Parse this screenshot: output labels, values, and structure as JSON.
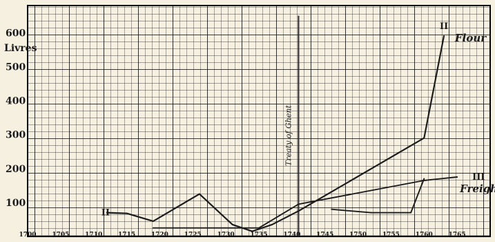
{
  "chart_data": {
    "type": "line",
    "y_unit_label": "Livres",
    "x_ticks": [
      "1700",
      "1705",
      "1710",
      "1715",
      "1720",
      "1725",
      "1730",
      "1735",
      "1740",
      "1745",
      "1750",
      "1755",
      "1760",
      "1765"
    ],
    "y_ticks": [
      "100",
      "200",
      "300",
      "400",
      "500",
      "600"
    ],
    "xlim": [
      1700,
      1770
    ],
    "ylim": [
      0,
      680
    ],
    "grid": true,
    "annotations": [
      {
        "text": "Treaty of Ghent",
        "x": 1741,
        "y_start": 0,
        "y_end": 650
      }
    ],
    "series": [
      {
        "name": "Flour",
        "marker": "II",
        "x": [
          1712,
          1715,
          1719,
          1726,
          1731,
          1734,
          1737,
          1741,
          1760,
          1763
        ],
        "y": [
          70,
          68,
          45,
          125,
          35,
          15,
          35,
          75,
          290,
          590
        ]
      },
      {
        "name": "Freight Rates",
        "marker": "III",
        "x": [
          1719,
          1735,
          1741,
          1760,
          1765
        ],
        "y": [
          25,
          25,
          95,
          165,
          175
        ]
      },
      {
        "x": [
          1746,
          1752,
          1758,
          1760
        ],
        "y": [
          80,
          70,
          70,
          170
        ]
      }
    ]
  }
}
